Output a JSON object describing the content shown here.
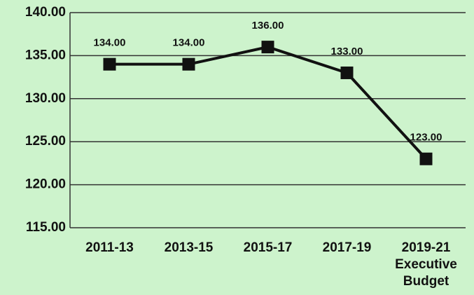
{
  "chart_data": {
    "type": "line",
    "categories": [
      "2011-13",
      "2013-15",
      "2015-17",
      "2017-19",
      "2019-21 Executive Budget"
    ],
    "values": [
      134,
      134,
      136,
      133,
      123
    ],
    "value_labels": [
      "134.00",
      "134.00",
      "136.00",
      "133.00",
      "123.00"
    ],
    "color": "#111111",
    "ylim": [
      115,
      140
    ],
    "yticks": [
      {
        "value": 115,
        "label": "115.00"
      },
      {
        "value": 120,
        "label": "120.00"
      },
      {
        "value": 125,
        "label": "125.00"
      },
      {
        "value": 130,
        "label": "130.00"
      },
      {
        "value": 135,
        "label": "135.00"
      },
      {
        "value": 140,
        "label": "140.00"
      }
    ],
    "grid": true
  }
}
